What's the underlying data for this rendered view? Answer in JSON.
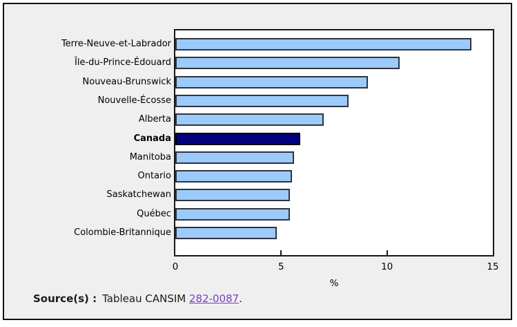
{
  "chart_data": {
    "type": "bar",
    "orientation": "horizontal",
    "title": "",
    "categories": [
      "Terre-Neuve-et-Labrador",
      "Île-du-Prince-Édouard",
      "Nouveau-Brunswick",
      "Nouvelle-Écosse",
      "Alberta",
      "Canada",
      "Manitoba",
      "Ontario",
      "Saskatchewan",
      "Québec",
      "Colombie-Britannique"
    ],
    "values": [
      14.0,
      10.6,
      9.1,
      8.2,
      7.0,
      5.9,
      5.6,
      5.5,
      5.4,
      5.4,
      4.8
    ],
    "highlight_index": 5,
    "highlight_category": "Canada",
    "xlabel": "%",
    "xlim": [
      0,
      15
    ],
    "xticks": [
      0,
      5,
      10,
      15
    ],
    "grid": false,
    "legend": "none",
    "colors": {
      "bar_fill": "#9bcbfa",
      "bar_border": "#32323c",
      "highlight_fill": "#02027e",
      "highlight_border": "#000000",
      "plot_background": "#ffffff",
      "frame_background": "#efefef"
    }
  },
  "source": {
    "label": "Source(s) :",
    "text": "Tableau CANSIM",
    "link": "282-0087",
    "suffix": ".",
    "link_color": "#7a3fc1"
  }
}
